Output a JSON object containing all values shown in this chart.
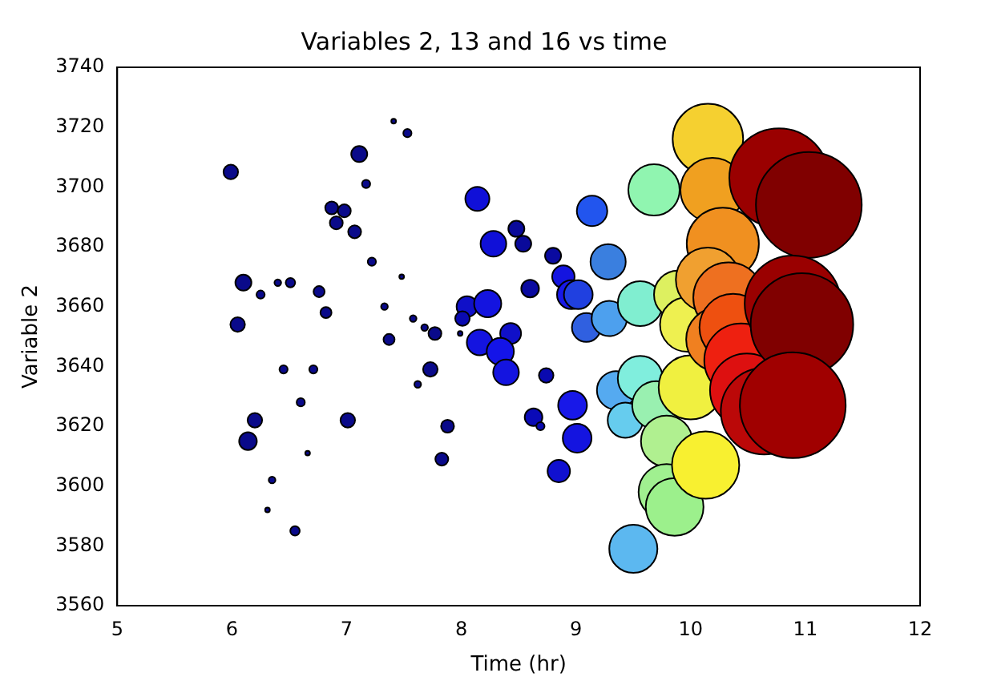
{
  "chart_data": {
    "type": "bubble",
    "title": "Variables 2, 13 and 16 vs time",
    "xlabel": "Time (hr)",
    "ylabel": "Variable 2",
    "xlim": [
      5,
      12
    ],
    "xticks": [
      5,
      6,
      7,
      8,
      9,
      10,
      11,
      12
    ],
    "ylim": [
      3560,
      3740
    ],
    "yticks": [
      3560,
      3580,
      3600,
      3620,
      3640,
      3660,
      3680,
      3700,
      3720,
      3740
    ],
    "grid": false,
    "legend": false,
    "series": [
      {
        "x": [
          5.99,
          7.11,
          7.41,
          7.53,
          7.17,
          6.87,
          6.98,
          6.91,
          7.07,
          7.22,
          7.48,
          6.1,
          6.25,
          6.4,
          6.51,
          6.76,
          6.82,
          6.05,
          7.33,
          7.58,
          7.37,
          7.68,
          7.77,
          7.99,
          6.45,
          6.71,
          7.73,
          7.62,
          6.6,
          6.2,
          7.01,
          6.14,
          7.88,
          6.66,
          7.83,
          6.35,
          6.31,
          6.55,
          8.14,
          8.28,
          8.48,
          8.54,
          8.8,
          8.89,
          8.6,
          8.05,
          8.23,
          8.01,
          8.16,
          8.43,
          8.34,
          8.39,
          8.74,
          8.63,
          8.69,
          8.85,
          8.96,
          8.97,
          9.01,
          9.14,
          9.28,
          9.02,
          9.09,
          9.29,
          9.35,
          9.43,
          9.5,
          9.56,
          9.56,
          9.68,
          9.7,
          9.79,
          9.79,
          9.86,
          9.89,
          9.97,
          10.0,
          10.13,
          10.15,
          10.19,
          10.28,
          10.15,
          10.33,
          10.24,
          10.37,
          10.44,
          10.49,
          10.64,
          10.77,
          11.03,
          10.89,
          10.97,
          10.89
        ],
        "values": [
          3705,
          3711,
          3722,
          3718,
          3701,
          3693,
          3692,
          3688,
          3685,
          3675,
          3670,
          3668,
          3664,
          3668,
          3668,
          3665,
          3658,
          3654,
          3660,
          3656,
          3649,
          3653,
          3651,
          3651,
          3639,
          3639,
          3639,
          3634,
          3628,
          3622,
          3622,
          3615,
          3620,
          3611,
          3609,
          3602,
          3592,
          3585,
          3696,
          3681,
          3686,
          3681,
          3677,
          3670,
          3666,
          3660,
          3661,
          3656,
          3648,
          3651,
          3645,
          3638,
          3637,
          3623,
          3620,
          3605,
          3664,
          3627,
          3616,
          3692,
          3675,
          3664,
          3653,
          3656,
          3632,
          3622,
          3579,
          3636,
          3661,
          3699,
          3627,
          3615,
          3598,
          3593,
          3664,
          3654,
          3633,
          3607,
          3716,
          3699,
          3681,
          3669,
          3663,
          3649,
          3653,
          3642,
          3632,
          3625,
          3703,
          3694,
          3661,
          3654,
          3627
        ],
        "sizes": [
          0.019,
          0.023,
          0.002,
          0.006,
          0.006,
          0.015,
          0.015,
          0.015,
          0.015,
          0.006,
          0.002,
          0.023,
          0.006,
          0.004,
          0.008,
          0.011,
          0.011,
          0.019,
          0.004,
          0.004,
          0.011,
          0.004,
          0.015,
          0.002,
          0.006,
          0.006,
          0.019,
          0.004,
          0.006,
          0.019,
          0.019,
          0.028,
          0.015,
          0.002,
          0.015,
          0.004,
          0.002,
          0.008,
          0.052,
          0.059,
          0.023,
          0.023,
          0.023,
          0.045,
          0.028,
          0.039,
          0.066,
          0.019,
          0.059,
          0.039,
          0.066,
          0.059,
          0.019,
          0.028,
          0.006,
          0.045,
          0.074,
          0.074,
          0.074,
          0.083,
          0.111,
          0.074,
          0.074,
          0.111,
          0.132,
          0.111,
          0.207,
          0.18,
          0.18,
          0.235,
          0.207,
          0.235,
          0.281,
          0.298,
          0.207,
          0.265,
          0.367,
          0.405,
          0.444,
          0.367,
          0.465,
          0.367,
          0.444,
          0.367,
          0.405,
          0.486,
          0.486,
          0.669,
          0.882,
          1,
          0.826,
          0.94,
          1
        ],
        "colors": [
          "#0a0a8a",
          "#0a0a8a",
          "#0a0a8a",
          "#0a0a8a",
          "#0a0a8a",
          "#0a0a8a",
          "#0a0a8a",
          "#0a0a8a",
          "#0a0a8a",
          "#0a0a8a",
          "#0a0a8a",
          "#0a0a8a",
          "#0a0a8a",
          "#0a0a8a",
          "#0a0a8a",
          "#0a0a8a",
          "#0a0a8a",
          "#0a0a8a",
          "#0a0a8a",
          "#0a0a8a",
          "#0a0a8a",
          "#0a0a8a",
          "#0a0a8a",
          "#0a0a8a",
          "#0a0a8a",
          "#0a0a8a",
          "#0a0a8a",
          "#0a0a8a",
          "#0a0a8a",
          "#0a0a8a",
          "#0a0a8a",
          "#0a0a8a",
          "#0a0a8a",
          "#0a0a8a",
          "#0a0a8a",
          "#0a0a8a",
          "#0a0a8a",
          "#0a0a8a",
          "#1010d8",
          "#1010d8",
          "#0a0a9a",
          "#0a0a9a",
          "#0a0aa0",
          "#1414e0",
          "#0a0aa0",
          "#1010c8",
          "#1414e0",
          "#0a0ab0",
          "#1414e0",
          "#1010c8",
          "#1414e8",
          "#1414e0",
          "#0a0ab0",
          "#0a0ab8",
          "#0a0ab0",
          "#1010d0",
          "#1818e8",
          "#1818e8",
          "#1414e0",
          "#2255ee",
          "#3a7fdf",
          "#2040e0",
          "#3060e0",
          "#4da0ee",
          "#55aaf0",
          "#66ccee",
          "#5cb8f0",
          "#80eedd",
          "#80eed0",
          "#90f5b0",
          "#99f0b0",
          "#b0f090",
          "#a0f090",
          "#9cf08c",
          "#ddf060",
          "#eef050",
          "#f0f040",
          "#f8f030",
          "#f5d030",
          "#f0a020",
          "#f09020",
          "#f0a030",
          "#ee7020",
          "#f08020",
          "#ee5010",
          "#ee2010",
          "#dd1010",
          "#bb0808",
          "#9a0000",
          "#800000",
          "#9a0000",
          "#800000",
          "#a00000"
        ]
      }
    ]
  }
}
